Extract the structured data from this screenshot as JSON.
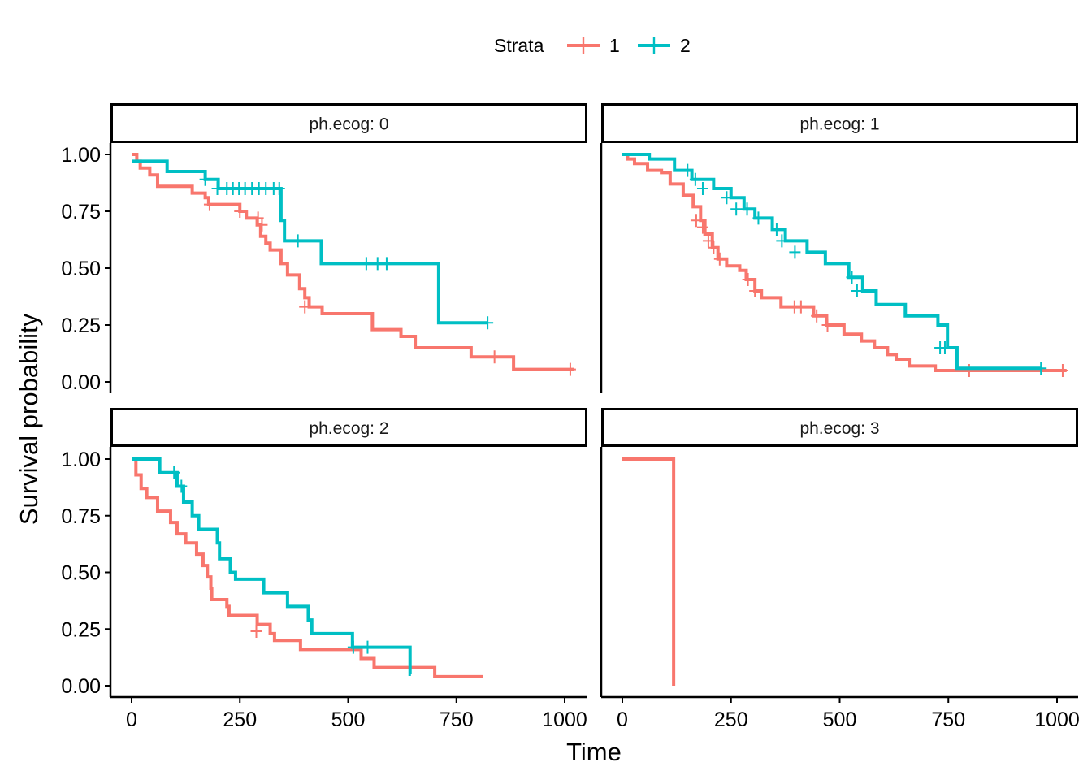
{
  "chart_data": {
    "type": "line",
    "subtype": "kaplan-meier step",
    "xlabel": "Time",
    "ylabel": "Survival probability",
    "xlim": [
      0,
      1000
    ],
    "ylim": [
      0,
      1
    ],
    "x_ticks": [
      0,
      250,
      500,
      750,
      1000
    ],
    "y_ticks": [
      0,
      0.25,
      0.5,
      0.75,
      1
    ],
    "x_tick_labels": [
      "0",
      "250",
      "500",
      "750",
      "1000"
    ],
    "y_tick_labels": [
      "0.00",
      "0.25",
      "0.50",
      "0.75",
      "1.00"
    ],
    "legend": {
      "title": "Strata",
      "position": "top",
      "entries": [
        {
          "name": "1",
          "color": "#F8766D"
        },
        {
          "name": "2",
          "color": "#00BFC4"
        }
      ]
    },
    "panels": [
      {
        "label": "ph.ecog: 0",
        "series": [
          {
            "name": "1",
            "color": "#F8766D",
            "steps": [
              [
                0,
                1.0
              ],
              [
                12,
                0.97
              ],
              [
                20,
                0.94
              ],
              [
                42,
                0.91
              ],
              [
                60,
                0.86
              ],
              [
                140,
                0.83
              ],
              [
                170,
                0.81
              ],
              [
                178,
                0.78
              ],
              [
                250,
                0.75
              ],
              [
                265,
                0.72
              ],
              [
                290,
                0.69
              ],
              [
                298,
                0.64
              ],
              [
                310,
                0.61
              ],
              [
                320,
                0.58
              ],
              [
                345,
                0.52
              ],
              [
                360,
                0.47
              ],
              [
                388,
                0.41
              ],
              [
                400,
                0.37
              ],
              [
                410,
                0.33
              ],
              [
                440,
                0.3
              ],
              [
                556,
                0.23
              ],
              [
                622,
                0.2
              ],
              [
                655,
                0.15
              ],
              [
                784,
                0.11
              ],
              [
                882,
                0.055
              ]
            ],
            "end": 1022,
            "censor": [
              [
                180,
                0.78
              ],
              [
                250,
                0.75
              ],
              [
                292,
                0.72
              ],
              [
                301,
                0.69
              ],
              [
                400,
                0.33
              ],
              [
                838,
                0.11
              ],
              [
                1013,
                0.055
              ]
            ]
          },
          {
            "name": "2",
            "color": "#00BFC4",
            "steps": [
              [
                0,
                0.97
              ],
              [
                82,
                0.925
              ],
              [
                170,
                0.89
              ],
              [
                200,
                0.85
              ],
              [
                345,
                0.71
              ],
              [
                353,
                0.62
              ],
              [
                438,
                0.52
              ],
              [
                709,
                0.26
              ]
            ],
            "end": 822,
            "censor": [
              [
                170,
                0.89
              ],
              [
                198,
                0.85
              ],
              [
                220,
                0.85
              ],
              [
                234,
                0.85
              ],
              [
                248,
                0.85
              ],
              [
                262,
                0.85
              ],
              [
                278,
                0.85
              ],
              [
                294,
                0.85
              ],
              [
                310,
                0.85
              ],
              [
                328,
                0.85
              ],
              [
                341,
                0.85
              ],
              [
                384,
                0.62
              ],
              [
                542,
                0.52
              ],
              [
                568,
                0.52
              ],
              [
                589,
                0.52
              ],
              [
                822,
                0.26
              ]
            ]
          }
        ]
      },
      {
        "label": "ph.ecog: 1",
        "series": [
          {
            "name": "1",
            "color": "#F8766D",
            "steps": [
              [
                0,
                1.0
              ],
              [
                12,
                0.98
              ],
              [
                28,
                0.96
              ],
              [
                58,
                0.93
              ],
              [
                90,
                0.92
              ],
              [
                110,
                0.87
              ],
              [
                140,
                0.82
              ],
              [
                163,
                0.77
              ],
              [
                180,
                0.71
              ],
              [
                190,
                0.65
              ],
              [
                207,
                0.59
              ],
              [
                220,
                0.54
              ],
              [
                240,
                0.51
              ],
              [
                270,
                0.49
              ],
              [
                285,
                0.45
              ],
              [
                305,
                0.4
              ],
              [
                320,
                0.37
              ],
              [
                365,
                0.33
              ],
              [
                440,
                0.29
              ],
              [
                470,
                0.25
              ],
              [
                510,
                0.21
              ],
              [
                550,
                0.18
              ],
              [
                580,
                0.15
              ],
              [
                610,
                0.12
              ],
              [
                630,
                0.1
              ],
              [
                660,
                0.07
              ],
              [
                720,
                0.05
              ]
            ],
            "end": 1022,
            "censor": [
              [
                170,
                0.71
              ],
              [
                185,
                0.68
              ],
              [
                198,
                0.62
              ],
              [
                210,
                0.59
              ],
              [
                224,
                0.54
              ],
              [
                289,
                0.45
              ],
              [
                305,
                0.4
              ],
              [
                396,
                0.33
              ],
              [
                411,
                0.33
              ],
              [
                447,
                0.29
              ],
              [
                472,
                0.25
              ],
              [
                798,
                0.05
              ],
              [
                1013,
                0.05
              ]
            ]
          },
          {
            "name": "2",
            "color": "#00BFC4",
            "steps": [
              [
                0,
                1.0
              ],
              [
                62,
                0.98
              ],
              [
                120,
                0.93
              ],
              [
                160,
                0.89
              ],
              [
                210,
                0.85
              ],
              [
                250,
                0.81
              ],
              [
                280,
                0.76
              ],
              [
                305,
                0.72
              ],
              [
                345,
                0.67
              ],
              [
                375,
                0.62
              ],
              [
                425,
                0.57
              ],
              [
                467,
                0.52
              ],
              [
                521,
                0.46
              ],
              [
                553,
                0.4
              ],
              [
                584,
                0.34
              ],
              [
                651,
                0.29
              ],
              [
                726,
                0.25
              ],
              [
                748,
                0.15
              ],
              [
                770,
                0.06
              ]
            ],
            "end": 965,
            "censor": [
              [
                150,
                0.93
              ],
              [
                168,
                0.89
              ],
              [
                185,
                0.85
              ],
              [
                240,
                0.81
              ],
              [
                262,
                0.76
              ],
              [
                287,
                0.76
              ],
              [
                313,
                0.72
              ],
              [
                355,
                0.67
              ],
              [
                367,
                0.62
              ],
              [
                397,
                0.57
              ],
              [
                528,
                0.46
              ],
              [
                540,
                0.4
              ],
              [
                731,
                0.15
              ],
              [
                742,
                0.15
              ],
              [
                963,
                0.06
              ]
            ]
          }
        ]
      },
      {
        "label": "ph.ecog: 2",
        "series": [
          {
            "name": "1",
            "color": "#F8766D",
            "steps": [
              [
                0,
                1.0
              ],
              [
                10,
                0.93
              ],
              [
                22,
                0.87
              ],
              [
                35,
                0.83
              ],
              [
                60,
                0.77
              ],
              [
                90,
                0.72
              ],
              [
                105,
                0.67
              ],
              [
                125,
                0.63
              ],
              [
                150,
                0.58
              ],
              [
                165,
                0.53
              ],
              [
                175,
                0.48
              ],
              [
                183,
                0.43
              ],
              [
                185,
                0.38
              ],
              [
                220,
                0.35
              ],
              [
                225,
                0.31
              ],
              [
                290,
                0.27
              ],
              [
                320,
                0.23
              ],
              [
                330,
                0.2
              ],
              [
                390,
                0.16
              ],
              [
                530,
                0.12
              ],
              [
                560,
                0.08
              ],
              [
                700,
                0.04
              ]
            ],
            "end": 812,
            "censor": [
              [
                288,
                0.24
              ]
            ]
          },
          {
            "name": "2",
            "color": "#00BFC4",
            "steps": [
              [
                0,
                1.0
              ],
              [
                65,
                0.94
              ],
              [
                105,
                0.88
              ],
              [
                120,
                0.81
              ],
              [
                140,
                0.75
              ],
              [
                155,
                0.69
              ],
              [
                198,
                0.63
              ],
              [
                203,
                0.56
              ],
              [
                228,
                0.5
              ],
              [
                240,
                0.47
              ],
              [
                305,
                0.41
              ],
              [
                360,
                0.35
              ],
              [
                408,
                0.29
              ],
              [
                416,
                0.23
              ],
              [
                510,
                0.17
              ],
              [
                643,
                0.05
              ]
            ],
            "end": 645,
            "censor": [
              [
                98,
                0.94
              ],
              [
                115,
                0.88
              ],
              [
                512,
                0.17
              ],
              [
                545,
                0.17
              ]
            ]
          }
        ]
      },
      {
        "label": "ph.ecog: 3",
        "series": [
          {
            "name": "1",
            "color": "#F8766D",
            "steps": [
              [
                0,
                1.0
              ],
              [
                118,
                0.0
              ]
            ],
            "end": 118,
            "censor": []
          }
        ]
      }
    ]
  }
}
